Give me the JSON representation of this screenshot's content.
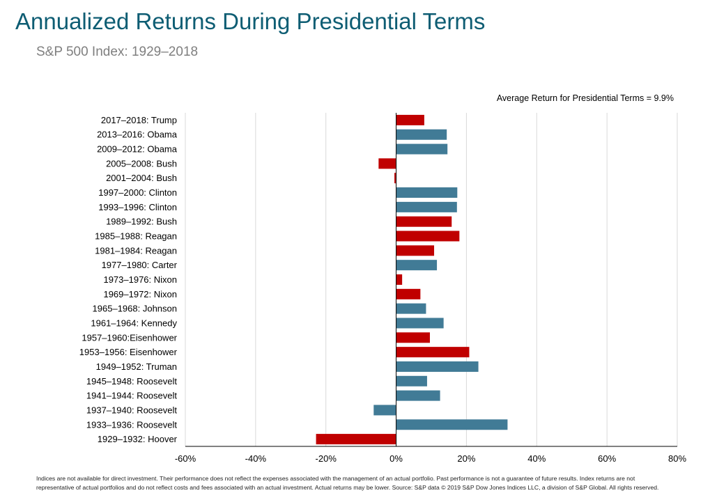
{
  "header": {
    "title": "Annualized Returns During Presidential Terms",
    "subtitle": "S&P 500 Index: 1929–2018"
  },
  "annotation": "Average Return for Presidential Terms = 9.9%",
  "footnote": {
    "line1": "Indices are not available for direct investment. Their performance does not reflect the expenses associated with the management of an actual portfolio. Past performance is not a guarantee of future results. Index returns are not",
    "line2": "representative of actual portfolios and do not reflect costs and fees associated with an actual investment. Actual returns may be lower. Source: S&P data © 2019 S&P Dow Jones Indices LLC, a division of S&P Global. All rights reserved."
  },
  "colors": {
    "republican": "#c00000",
    "democrat": "#417b96",
    "grid": "#d9d9d9",
    "axis": "#000000"
  },
  "chart_data": {
    "type": "bar",
    "orientation": "horizontal",
    "xlim": [
      -60,
      80
    ],
    "xticks": [
      -60,
      -40,
      -20,
      0,
      20,
      40,
      60,
      80
    ],
    "tick_format": "percent",
    "grid": true,
    "categories": [
      "2017–2018: Trump",
      "2013–2016: Obama",
      "2009–2012: Obama",
      "2005–2008: Bush",
      "2001–2004: Bush",
      "1997–2000: Clinton",
      "1993–1996: Clinton",
      "1989–1992: Bush",
      "1985–1988: Reagan",
      "1981–1984: Reagan",
      "1977–1980: Carter",
      "1973–1976: Nixon",
      "1969–1972: Nixon",
      "1965–1968: Johnson",
      "1961–1964: Kennedy",
      "1957–1960:Eisenhower",
      "1953–1956: Eisenhower",
      "1949–1952: Truman",
      "1945–1948: Roosevelt",
      "1941–1944: Roosevelt",
      "1937–1940: Roosevelt",
      "1933–1936: Roosevelt",
      "1929–1932: Hoover"
    ],
    "values": [
      8.0,
      14.4,
      14.6,
      -5.0,
      -0.5,
      17.4,
      17.3,
      15.8,
      18.0,
      10.8,
      11.6,
      1.7,
      6.9,
      8.5,
      13.5,
      9.6,
      20.8,
      23.4,
      8.8,
      12.5,
      -6.4,
      31.7,
      -22.8
    ],
    "party": [
      "R",
      "D",
      "D",
      "R",
      "R",
      "D",
      "D",
      "R",
      "R",
      "R",
      "D",
      "R",
      "R",
      "D",
      "D",
      "R",
      "R",
      "D",
      "D",
      "D",
      "D",
      "D",
      "R"
    ]
  }
}
